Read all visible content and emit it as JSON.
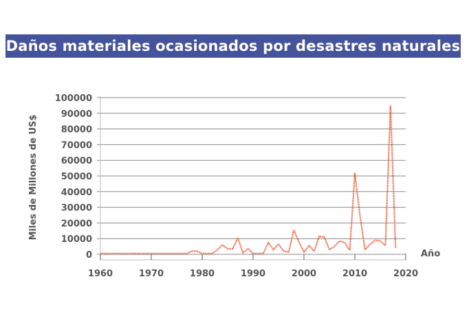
{
  "chart_data": {
    "type": "line",
    "title": "Daños materiales ocasionados por desastres naturales",
    "xlabel": "Año",
    "ylabel": "Miles de Millones de US$",
    "xlim": [
      1960,
      2020
    ],
    "ylim": [
      0,
      100000
    ],
    "x_ticks": [
      "1960",
      "1970",
      "1980",
      "1990",
      "2000",
      "2010",
      "2020"
    ],
    "y_ticks": [
      "0",
      "10000",
      "20000",
      "30000",
      "40000",
      "50000",
      "60000",
      "70000",
      "80000",
      "90000",
      "100000"
    ],
    "grid": "horizontal",
    "legend": "none",
    "line_style": "dotted",
    "colors": {
      "line": "#e8552e",
      "title_bg": "#45539c",
      "grid": "#8a8a8a",
      "text": "#555555"
    },
    "series": [
      {
        "name": "Daños materiales",
        "x": [
          1960,
          1961,
          1962,
          1963,
          1964,
          1965,
          1966,
          1967,
          1968,
          1969,
          1970,
          1971,
          1972,
          1973,
          1974,
          1975,
          1976,
          1977,
          1978,
          1979,
          1980,
          1981,
          1982,
          1983,
          1984,
          1985,
          1986,
          1987,
          1988,
          1989,
          1990,
          1991,
          1992,
          1993,
          1994,
          1995,
          1996,
          1997,
          1998,
          1999,
          2000,
          2001,
          2002,
          2003,
          2004,
          2005,
          2006,
          2007,
          2008,
          2009,
          2010,
          2011,
          2012,
          2013,
          2014,
          2015,
          2016,
          2017,
          2018
        ],
        "values": [
          500,
          500,
          500,
          500,
          500,
          500,
          500,
          500,
          500,
          500,
          500,
          500,
          500,
          500,
          500,
          500,
          500,
          500,
          2000,
          2000,
          500,
          500,
          500,
          3000,
          6000,
          3500,
          3500,
          10500,
          1000,
          3500,
          500,
          500,
          500,
          7500,
          3000,
          6500,
          2000,
          1500,
          15500,
          8000,
          1500,
          5500,
          2000,
          11500,
          11000,
          3000,
          5000,
          8500,
          7500,
          2500,
          51500,
          25000,
          3000,
          6500,
          9000,
          8500,
          5500,
          94500,
          4000
        ]
      }
    ]
  }
}
